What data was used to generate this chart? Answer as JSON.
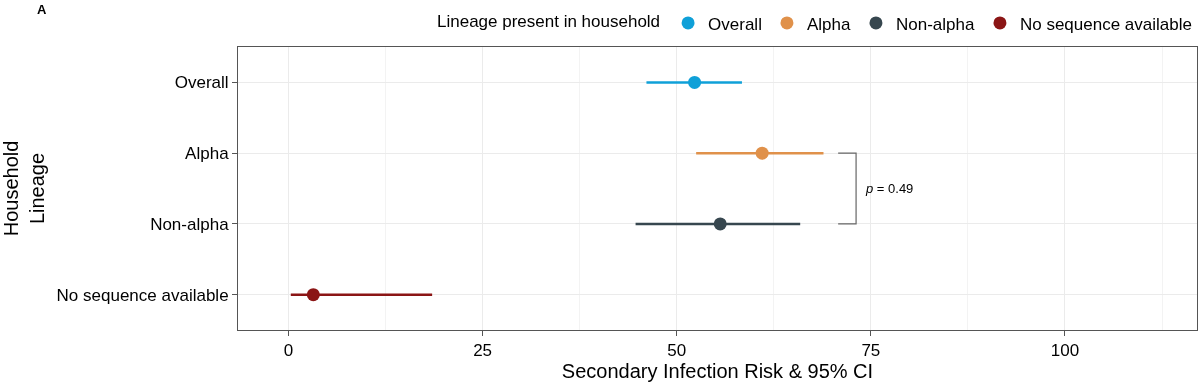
{
  "chart_data": {
    "type": "scatter",
    "orientation": "horizontal",
    "xlabel": "Secondary Infection Risk & 95% CI",
    "ylabel": "Household\nLineage",
    "legend_title": "Lineage present in household",
    "categories": [
      "Overall",
      "Alpha",
      "Non-alpha",
      "No sequence available"
    ],
    "series": [
      {
        "name": "Overall",
        "color": "#0fa0d8",
        "values": [
          52.3,
          null,
          null,
          null
        ],
        "errors": [
          [
            46.1,
            58.4
          ],
          null,
          null,
          null
        ]
      },
      {
        "name": "Alpha",
        "color": "#e0914a",
        "values": [
          null,
          61.0,
          null,
          null
        ],
        "errors": [
          null,
          [
            52.5,
            68.9
          ],
          null,
          null
        ]
      },
      {
        "name": "Non-alpha",
        "color": "#37474f",
        "values": [
          null,
          null,
          55.6,
          null
        ],
        "errors": [
          null,
          null,
          [
            44.7,
            65.9
          ],
          null
        ]
      },
      {
        "name": "No sequence available",
        "color": "#8b1515",
        "values": [
          null,
          null,
          null,
          3.2
        ],
        "errors": [
          null,
          null,
          null,
          [
            0.3,
            18.5
          ]
        ]
      }
    ],
    "xlim": [
      -6.5,
      117
    ],
    "xticks": [
      0,
      25,
      50,
      75,
      100
    ],
    "annotations": [
      "A",
      "p = 0.49"
    ],
    "grid": true,
    "legend": "top right",
    "marker": "circle"
  }
}
